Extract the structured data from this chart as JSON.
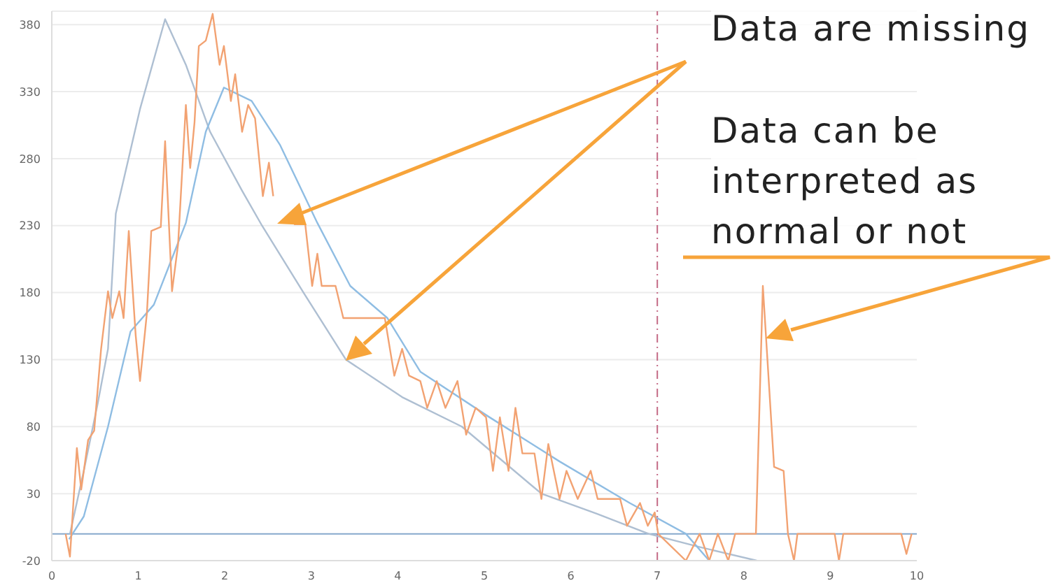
{
  "chart_data": {
    "type": "line",
    "xlim": [
      0,
      10
    ],
    "xticks": [
      0,
      1,
      2,
      3,
      4,
      5,
      6,
      7,
      8,
      9,
      10
    ],
    "ylim": [
      -20,
      390
    ],
    "yticks": [
      -20,
      30,
      80,
      130,
      180,
      230,
      280,
      330,
      380
    ],
    "grid": "y",
    "marker": "none",
    "line_style": "solid",
    "ref_lines": [
      {
        "axis": "y",
        "value": 0,
        "color": "#86a8cc",
        "line_style": "solid"
      },
      {
        "axis": "x",
        "value": 7,
        "color": "#c46a86",
        "line_style": "dashed"
      }
    ],
    "series": [
      {
        "color": "#aebfd2",
        "x": [
          0.21,
          0.37,
          0.53,
          0.65,
          0.74,
          1.02,
          1.31,
          1.55,
          1.83,
          2.2,
          2.43,
          2.91,
          3.4,
          4.05,
          4.74,
          5.66,
          6.3,
          6.9,
          7.5,
          8.15
        ],
        "values": [
          0,
          47,
          97,
          138,
          239,
          317,
          384,
          350,
          300,
          256,
          230,
          180,
          130,
          102,
          80,
          30,
          15,
          0,
          -10,
          -20
        ]
      },
      {
        "color": "#8fbde3",
        "x": [
          0.2,
          0.37,
          0.65,
          0.91,
          1.18,
          1.55,
          1.78,
          1.99,
          2.31,
          2.64,
          3.07,
          3.45,
          3.88,
          4.26,
          5.06,
          5.87,
          6.68,
          7.33,
          7.6
        ],
        "values": [
          -4,
          13,
          80,
          151,
          171,
          232,
          300,
          333,
          323,
          290,
          232,
          185,
          161,
          121,
          87,
          54,
          23,
          0,
          -20
        ]
      },
      {
        "color": "#f2a272",
        "x": [
          0.16,
          0.21,
          0.29,
          0.34,
          0.42,
          0.49,
          0.57,
          0.65,
          0.7,
          0.78,
          0.83,
          0.89,
          0.97,
          1.02,
          1.1,
          1.15,
          1.26,
          1.31,
          1.39,
          1.46,
          1.55,
          1.6,
          1.65,
          1.7,
          1.78,
          1.86,
          1.94,
          1.99,
          2.07,
          2.12,
          2.2,
          2.27,
          2.35,
          2.44,
          2.51,
          2.56,
          2.68,
          2.8,
          2.93,
          3.01,
          3.07,
          3.12,
          3.28,
          3.37,
          3.45,
          3.61,
          3.85,
          3.96,
          4.05,
          4.13,
          4.26,
          4.34,
          4.45,
          4.55,
          4.69,
          4.79,
          4.9,
          5.02,
          5.1,
          5.18,
          5.28,
          5.36,
          5.44,
          5.58,
          5.66,
          5.74,
          5.87,
          5.95,
          6.08,
          6.23,
          6.31,
          6.57,
          6.65,
          6.8,
          6.89,
          6.97,
          7.01,
          7.33,
          7.49,
          7.6,
          7.7,
          7.82,
          7.9,
          8.14,
          8.22,
          8.35,
          8.46,
          8.51,
          8.58,
          8.62,
          9.05,
          9.1,
          9.15,
          9.82,
          9.88,
          9.94
        ],
        "values": [
          0,
          -17,
          64,
          33,
          70,
          77,
          138,
          181,
          161,
          181,
          161,
          226,
          148,
          114,
          165,
          226,
          229,
          293,
          181,
          216,
          320,
          273,
          307,
          364,
          368,
          388,
          350,
          364,
          323,
          343,
          300,
          320,
          310,
          252,
          277,
          252,
          null,
          231,
          231,
          185,
          209,
          185,
          185,
          161,
          161,
          161,
          161,
          118,
          138,
          118,
          114,
          94,
          114,
          94,
          114,
          74,
          94,
          87,
          47,
          87,
          47,
          94,
          60,
          60,
          26,
          67,
          26,
          47,
          26,
          47,
          26,
          26,
          6,
          23,
          6,
          16,
          0,
          -20,
          0,
          -20,
          0,
          -20,
          0,
          0,
          185,
          50,
          47,
          0,
          -20,
          0,
          0,
          -20,
          0,
          0,
          -15,
          0
        ]
      }
    ],
    "annotations": [
      "Data are missing",
      "Data can be interpreted as normal or not"
    ]
  }
}
